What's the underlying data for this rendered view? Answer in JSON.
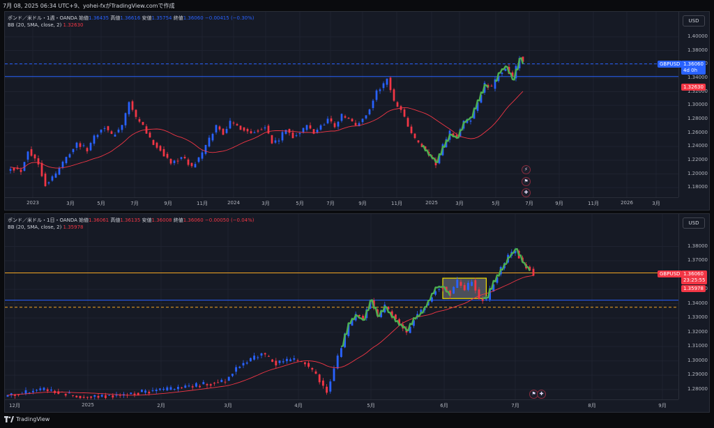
{
  "caption": "7月 08, 2025 06:34 UTC+9、yohei-fxがTradingView.comで作成",
  "footer_logo_text": "TradingView",
  "colors": {
    "background": "#161a25",
    "up_candle": "#2962ff",
    "down_candle": "#f23645",
    "bb_basis": "#f23645",
    "annotation_green": "#4caf50",
    "hline_blue": "#2962ff",
    "hline_orange": "#f5a623",
    "box_yellow": "#f5e000"
  },
  "chart_data": [
    {
      "type": "candlestick",
      "symbol": "GBPUSD",
      "legend": {
        "title": "ポンド／米ドル・1週・OANDA",
        "open_label": "始値",
        "open": "1.36435",
        "high_label": "高値",
        "high": "1.36616",
        "low_label": "安値",
        "low": "1.35754",
        "close_label": "終値",
        "close": "1.36060",
        "change": "−0.00415 (−0.30%)",
        "indicator": "BB (20, SMA, close, 2)",
        "indicator_value": "1.32630"
      },
      "currency": "USD",
      "ylim": [
        1.17,
        1.41
      ],
      "yticks": [
        "1.40000",
        "1.38000",
        "1.36000",
        "1.34000",
        "1.32000",
        "1.30000",
        "1.28000",
        "1.26000",
        "1.24000",
        "1.22000",
        "1.20000",
        "1.18000"
      ],
      "xticks": [
        "2023",
        "3月",
        "5月",
        "7月",
        "9月",
        "11月",
        "2024",
        "3月",
        "5月",
        "7月",
        "9月",
        "11月",
        "2025",
        "3月",
        "5月",
        "7月",
        "9月",
        "11月",
        "2026",
        "3月"
      ],
      "price_tag": {
        "symbol": "GBPUSD",
        "value": "1.36060",
        "countdown": "4d 0h"
      },
      "indicator_tag": "1.32630",
      "hlines": [
        1.3606,
        1.3421
      ],
      "waypoints": [
        [
          0,
          1.21
        ],
        [
          3,
          1.205
        ],
        [
          5,
          1.235
        ],
        [
          8,
          1.215
        ],
        [
          10,
          1.185
        ],
        [
          13,
          1.2
        ],
        [
          16,
          1.225
        ],
        [
          19,
          1.245
        ],
        [
          22,
          1.235
        ],
        [
          24,
          1.255
        ],
        [
          27,
          1.27
        ],
        [
          29,
          1.255
        ],
        [
          32,
          1.27
        ],
        [
          34,
          1.305
        ],
        [
          36,
          1.28
        ],
        [
          38,
          1.27
        ],
        [
          40,
          1.25
        ],
        [
          43,
          1.235
        ],
        [
          46,
          1.215
        ],
        [
          49,
          1.225
        ],
        [
          52,
          1.21
        ],
        [
          55,
          1.23
        ],
        [
          57,
          1.25
        ],
        [
          59,
          1.27
        ],
        [
          61,
          1.26
        ],
        [
          63,
          1.275
        ],
        [
          65,
          1.27
        ],
        [
          67,
          1.265
        ],
        [
          69,
          1.26
        ],
        [
          71,
          1.265
        ],
        [
          73,
          1.27
        ],
        [
          75,
          1.245
        ],
        [
          77,
          1.25
        ],
        [
          79,
          1.265
        ],
        [
          81,
          1.255
        ],
        [
          83,
          1.26
        ],
        [
          85,
          1.27
        ],
        [
          87,
          1.26
        ],
        [
          89,
          1.27
        ],
        [
          91,
          1.28
        ],
        [
          93,
          1.27
        ],
        [
          95,
          1.285
        ],
        [
          97,
          1.28
        ],
        [
          99,
          1.27
        ],
        [
          101,
          1.28
        ],
        [
          103,
          1.295
        ],
        [
          105,
          1.32
        ],
        [
          107,
          1.33
        ],
        [
          108,
          1.34
        ],
        [
          110,
          1.305
        ],
        [
          112,
          1.295
        ],
        [
          114,
          1.27
        ],
        [
          116,
          1.25
        ],
        [
          118,
          1.24
        ],
        [
          120,
          1.225
        ],
        [
          122,
          1.215
        ],
        [
          124,
          1.24
        ],
        [
          126,
          1.26
        ],
        [
          128,
          1.255
        ],
        [
          130,
          1.275
        ],
        [
          132,
          1.28
        ],
        [
          134,
          1.305
        ],
        [
          136,
          1.33
        ],
        [
          138,
          1.325
        ],
        [
          140,
          1.345
        ],
        [
          142,
          1.355
        ],
        [
          144,
          1.34
        ],
        [
          146,
          1.37
        ],
        [
          147,
          1.3606
        ]
      ]
    },
    {
      "type": "candlestick",
      "symbol": "GBPUSD",
      "legend": {
        "title": "ポンド／米ドル・1日・OANDA",
        "open_label": "始値",
        "open": "1.36061",
        "high_label": "高値",
        "high": "1.36135",
        "low_label": "安値",
        "low": "1.36008",
        "close_label": "終値",
        "close": "1.36060",
        "change": "−0.00050 (−0.04%)",
        "indicator": "BB (20, SMA, close, 2)",
        "indicator_value": "1.35978"
      },
      "currency": "USD",
      "ylim": [
        1.275,
        1.39
      ],
      "yticks": [
        "1.38000",
        "1.37000",
        "1.35000",
        "1.34000",
        "1.33000",
        "1.32000",
        "1.31000",
        "1.30000",
        "1.29000",
        "1.28000"
      ],
      "xticks": [
        "12月",
        "2025",
        "2月",
        "3月",
        "4月",
        "5月",
        "6月",
        "7月",
        "8月",
        "9月"
      ],
      "price_tag": {
        "symbol": "GBPUSD",
        "value": "1.36060",
        "countdown": "23:25:55"
      },
      "indicator_tag": "1.35978",
      "hlines": [
        1.3615,
        1.3424,
        1.3375
      ],
      "target_box": {
        "start_day": 120,
        "end_day": 132,
        "top": 1.3578,
        "bottom": 1.3436
      },
      "waypoints": [
        [
          0,
          1.276
        ],
        [
          10,
          1.28
        ],
        [
          20,
          1.275
        ],
        [
          30,
          1.276
        ],
        [
          50,
          1.282
        ],
        [
          60,
          1.286
        ],
        [
          63,
          1.295
        ],
        [
          66,
          1.3
        ],
        [
          70,
          1.305
        ],
        [
          74,
          1.298
        ],
        [
          78,
          1.301
        ],
        [
          82,
          1.298
        ],
        [
          85,
          1.29
        ],
        [
          87,
          1.282
        ],
        [
          88,
          1.278
        ],
        [
          90,
          1.295
        ],
        [
          92,
          1.31
        ],
        [
          94,
          1.325
        ],
        [
          96,
          1.332
        ],
        [
          98,
          1.33
        ],
        [
          100,
          1.342
        ],
        [
          102,
          1.33
        ],
        [
          104,
          1.338
        ],
        [
          106,
          1.332
        ],
        [
          108,
          1.325
        ],
        [
          110,
          1.32
        ],
        [
          112,
          1.33
        ],
        [
          114,
          1.335
        ],
        [
          116,
          1.342
        ],
        [
          118,
          1.35
        ],
        [
          120,
          1.352
        ],
        [
          122,
          1.347
        ],
        [
          124,
          1.355
        ],
        [
          126,
          1.35
        ],
        [
          128,
          1.356
        ],
        [
          130,
          1.344
        ],
        [
          132,
          1.343
        ],
        [
          134,
          1.355
        ],
        [
          136,
          1.365
        ],
        [
          138,
          1.373
        ],
        [
          140,
          1.377
        ],
        [
          142,
          1.368
        ],
        [
          144,
          1.364
        ],
        [
          145,
          1.3606
        ]
      ]
    }
  ]
}
